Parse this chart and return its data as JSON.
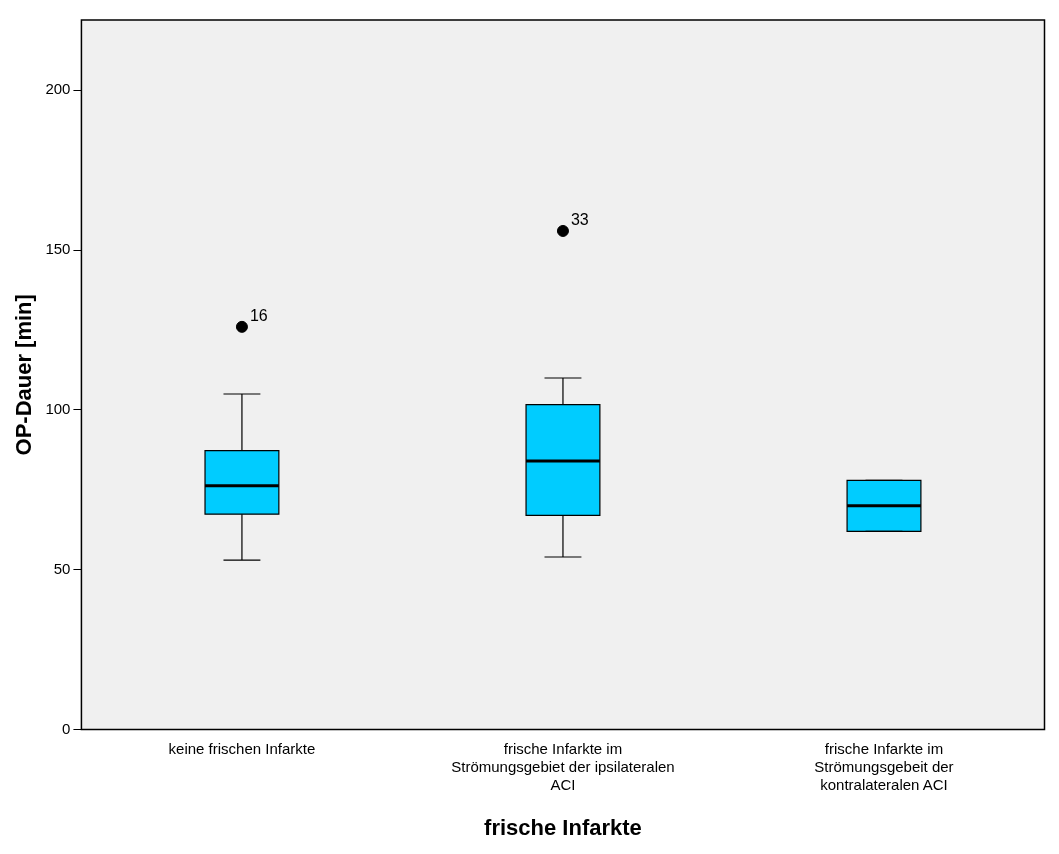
{
  "chart_data": {
    "type": "box",
    "xlabel": "frische Infarkte",
    "ylabel": "OP-Dauer [min]",
    "categories": [
      "keine frischen Infarkte",
      "frische Infarkte im Strömungsgebiet der ipsilateralen ACI",
      "frische Infarkte im Strömungsgebeit der kontralateralen ACI"
    ],
    "boxes": [
      {
        "low": 53,
        "q1": 67.4,
        "median": 76.3,
        "q3": 87.3,
        "high": 105,
        "outliers": [
          126
        ]
      },
      {
        "low": 54,
        "q1": 67,
        "median": 84,
        "q3": 101.7,
        "high": 110,
        "outliers": [
          156
        ]
      },
      {
        "low": 62,
        "q1": 62,
        "median": 70,
        "q3": 78,
        "high": 78
      }
    ],
    "color": "#00ccff",
    "ylim": [
      0,
      222
    ],
    "yticks": [
      0,
      50,
      100,
      150,
      200
    ],
    "grid": false,
    "legend": false,
    "annotations": [
      "16",
      "33"
    ]
  }
}
